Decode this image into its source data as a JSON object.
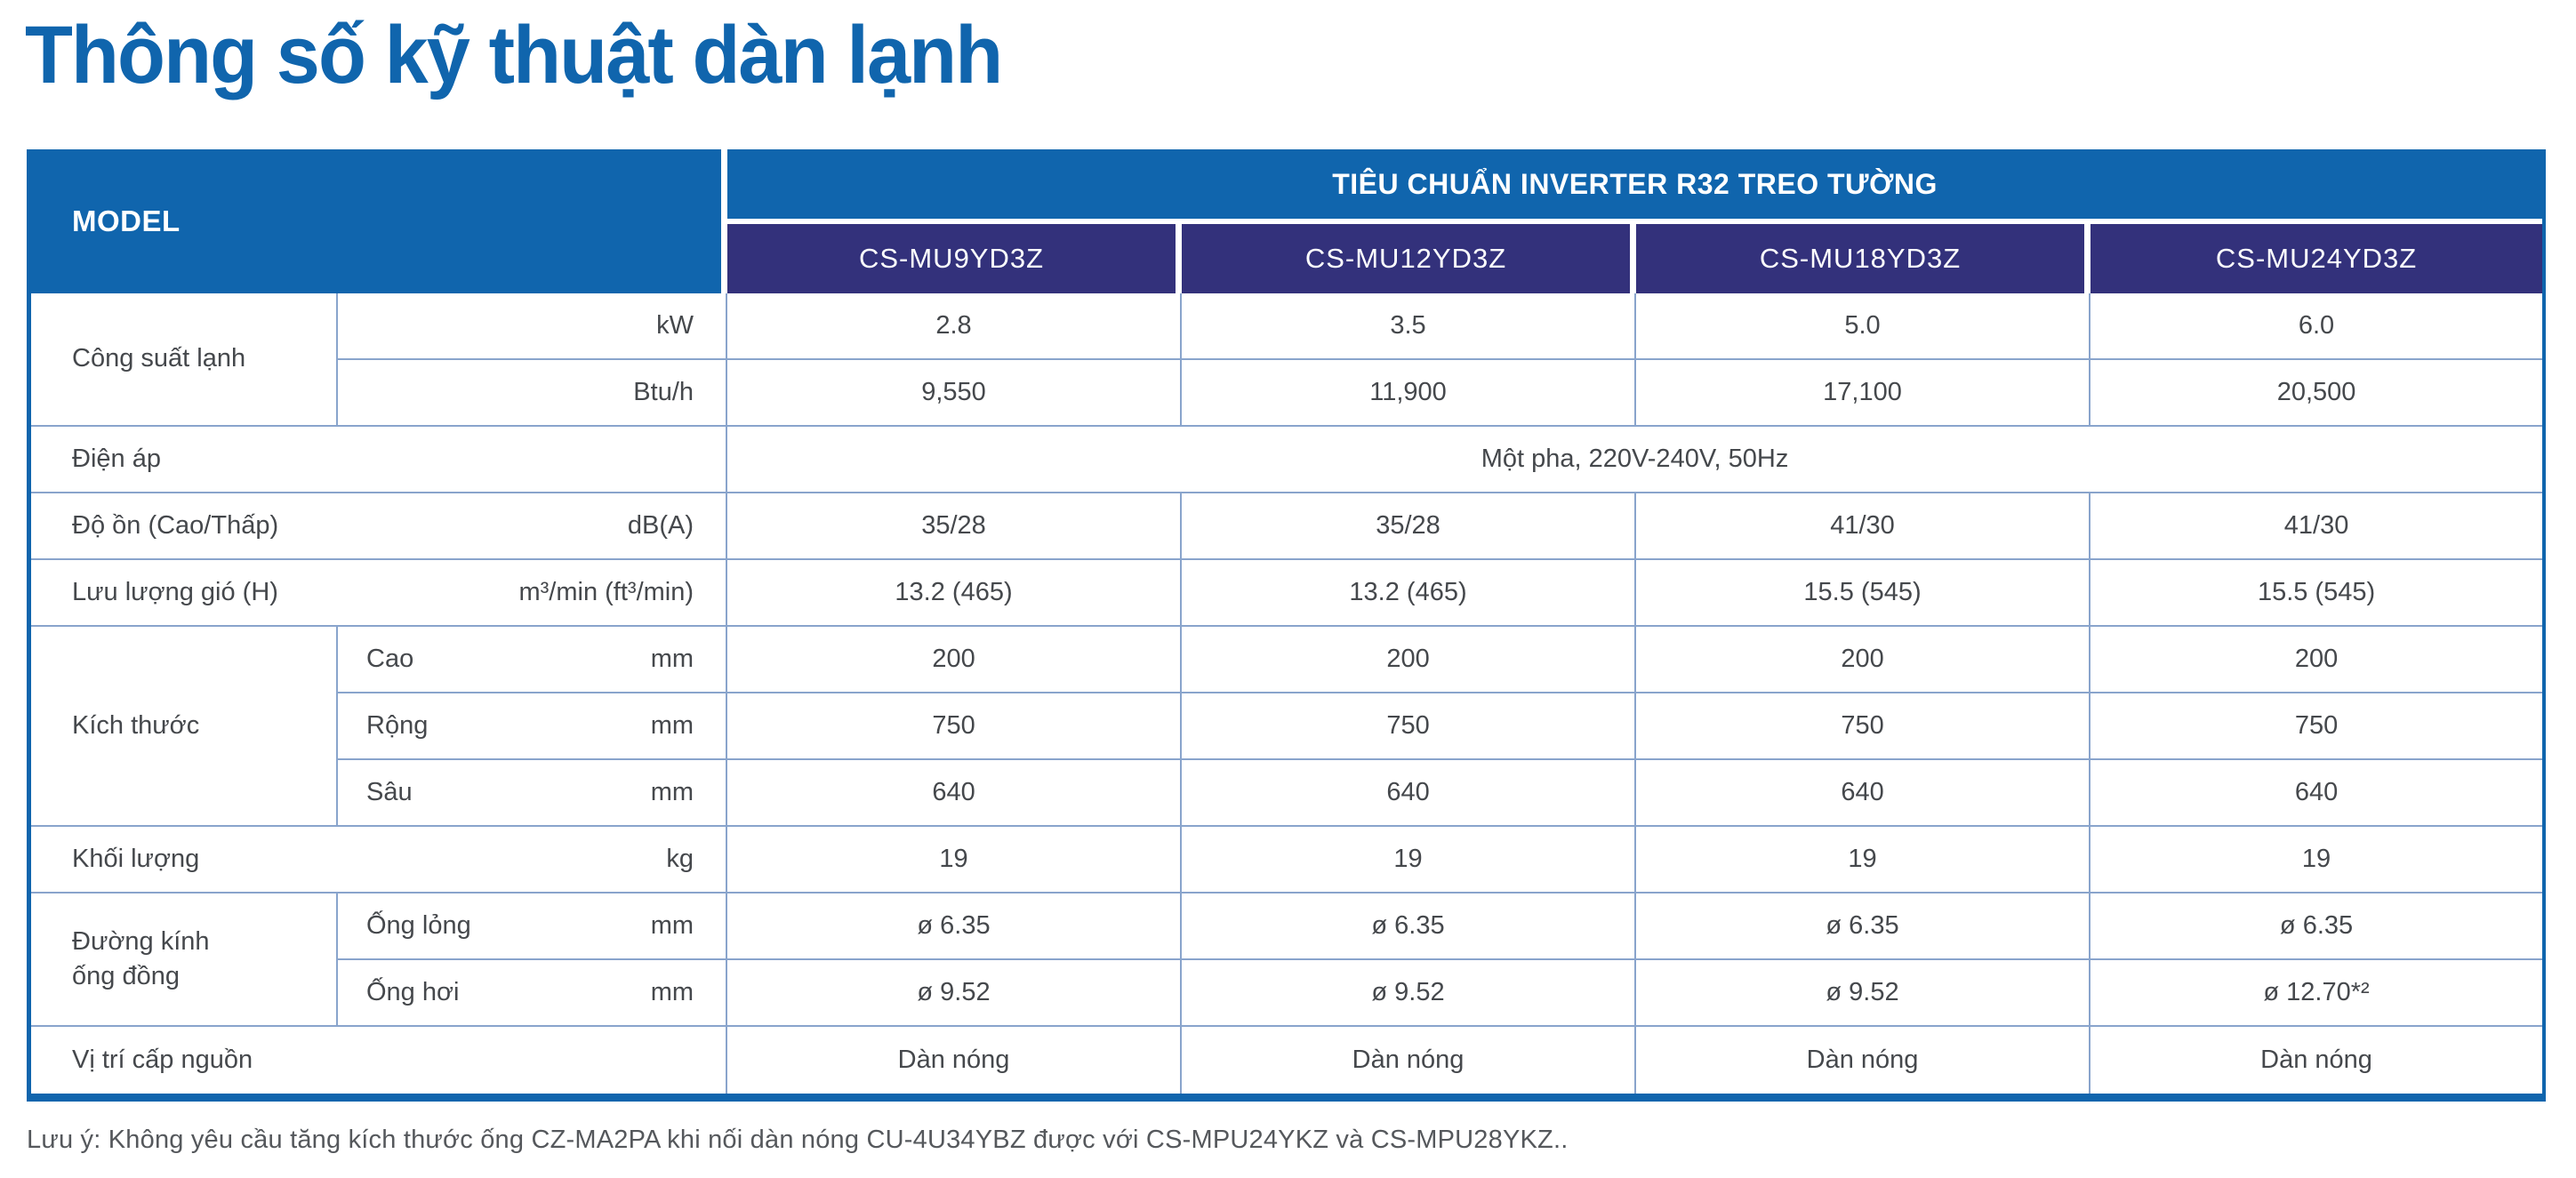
{
  "page": {
    "title": "Thông số kỹ thuật dàn lạnh",
    "footnote": "Lưu ý: Không yêu cầu tăng kích thước ống CZ-MA2PA khi nối dàn nóng CU-4U34YBZ được với CS-MPU24YKZ và CS-MPU28YKZ.."
  },
  "colors": {
    "primary_blue": "#1065ad",
    "header_navy": "#33317b",
    "grid_line": "#89a4cc",
    "body_text": "#45484c"
  },
  "table": {
    "model_label": "MODEL",
    "group_header": "TIÊU CHUẨN INVERTER R32 TREO TƯỜNG",
    "models": [
      "CS-MU9YD3Z",
      "CS-MU12YD3Z",
      "CS-MU18YD3Z",
      "CS-MU24YD3Z"
    ],
    "rows": [
      {
        "group": "Công suất lạnh",
        "unit": "kW",
        "values": [
          "2.8",
          "3.5",
          "5.0",
          "6.0"
        ]
      },
      {
        "unit": "Btu/h",
        "values": [
          "9,550",
          "11,900",
          "17,100",
          "20,500"
        ]
      },
      {
        "label": "Điện áp",
        "span_value": "Một pha, 220V-240V, 50Hz"
      },
      {
        "label": "Độ ồn (Cao/Thấp)",
        "unit": "dB(A)",
        "values": [
          "35/28",
          "35/28",
          "41/30",
          "41/30"
        ]
      },
      {
        "label": "Lưu lượng gió (H)",
        "unit": "m³/min (ft³/min)",
        "values": [
          "13.2 (465)",
          "13.2 (465)",
          "15.5 (545)",
          "15.5 (545)"
        ]
      },
      {
        "group": "Kích thước",
        "sub": "Cao",
        "unit": "mm",
        "values": [
          "200",
          "200",
          "200",
          "200"
        ]
      },
      {
        "sub": "Rộng",
        "unit": "mm",
        "values": [
          "750",
          "750",
          "750",
          "750"
        ]
      },
      {
        "sub": "Sâu",
        "unit": "mm",
        "values": [
          "640",
          "640",
          "640",
          "640"
        ]
      },
      {
        "label": "Khối lượng",
        "unit": "kg",
        "values": [
          "19",
          "19",
          "19",
          "19"
        ]
      },
      {
        "group": "Đường kính\nống đồng",
        "sub": "Ống lỏng",
        "unit": "mm",
        "values": [
          "ø 6.35",
          "ø 6.35",
          "ø 6.35",
          "ø 6.35"
        ]
      },
      {
        "sub": "Ống hơi",
        "unit": "mm",
        "values": [
          "ø 9.52",
          "ø 9.52",
          "ø 9.52",
          "ø 12.70*²"
        ]
      },
      {
        "label": "Vị trí cấp nguồn",
        "values": [
          "Dàn nóng",
          "Dàn nóng",
          "Dàn nóng",
          "Dàn nóng"
        ]
      }
    ]
  }
}
